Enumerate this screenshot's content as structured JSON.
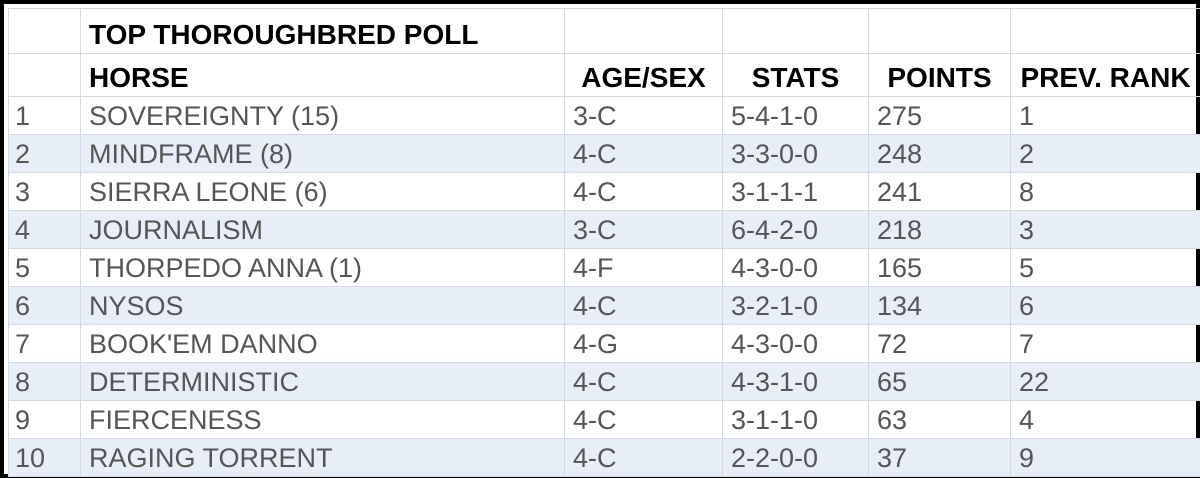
{
  "title": "TOP THOROUGHBRED POLL",
  "columns": [
    "",
    "HORSE",
    "AGE/SEX",
    "STATS",
    "POINTS",
    "PREV. RANK"
  ],
  "rows": [
    {
      "rank": "1",
      "horse": "SOVEREIGNTY (15)",
      "age_sex": "3-C",
      "stats": "5-4-1-0",
      "points": "275",
      "prev_rank": "1"
    },
    {
      "rank": "2",
      "horse": "MINDFRAME (8)",
      "age_sex": "4-C",
      "stats": "3-3-0-0",
      "points": "248",
      "prev_rank": "2"
    },
    {
      "rank": "3",
      "horse": "SIERRA LEONE (6)",
      "age_sex": "4-C",
      "stats": "3-1-1-1",
      "points": "241",
      "prev_rank": "8"
    },
    {
      "rank": "4",
      "horse": "JOURNALISM",
      "age_sex": "3-C",
      "stats": "6-4-2-0",
      "points": "218",
      "prev_rank": "3"
    },
    {
      "rank": "5",
      "horse": "THORPEDO ANNA (1)",
      "age_sex": "4-F",
      "stats": "4-3-0-0",
      "points": "165",
      "prev_rank": "5"
    },
    {
      "rank": "6",
      "horse": "NYSOS",
      "age_sex": "4-C",
      "stats": "3-2-1-0",
      "points": "134",
      "prev_rank": "6"
    },
    {
      "rank": "7",
      "horse": "BOOK'EM DANNO",
      "age_sex": "4-G",
      "stats": "4-3-0-0",
      "points": "72",
      "prev_rank": "7"
    },
    {
      "rank": "8",
      "horse": "DETERMINISTIC",
      "age_sex": "4-C",
      "stats": "4-3-1-0",
      "points": "65",
      "prev_rank": "22"
    },
    {
      "rank": "9",
      "horse": "FIERCENESS",
      "age_sex": "4-C",
      "stats": "3-1-1-0",
      "points": "63",
      "prev_rank": "4"
    },
    {
      "rank": "10",
      "horse": "RAGING TORRENT",
      "age_sex": "4-C",
      "stats": "2-2-0-0",
      "points": "37",
      "prev_rank": "9"
    }
  ],
  "colors": {
    "border": "#000000",
    "stripe": "#e8eef8",
    "grid": "#d3d9e0",
    "text": "#555555",
    "header_text": "#000000"
  }
}
